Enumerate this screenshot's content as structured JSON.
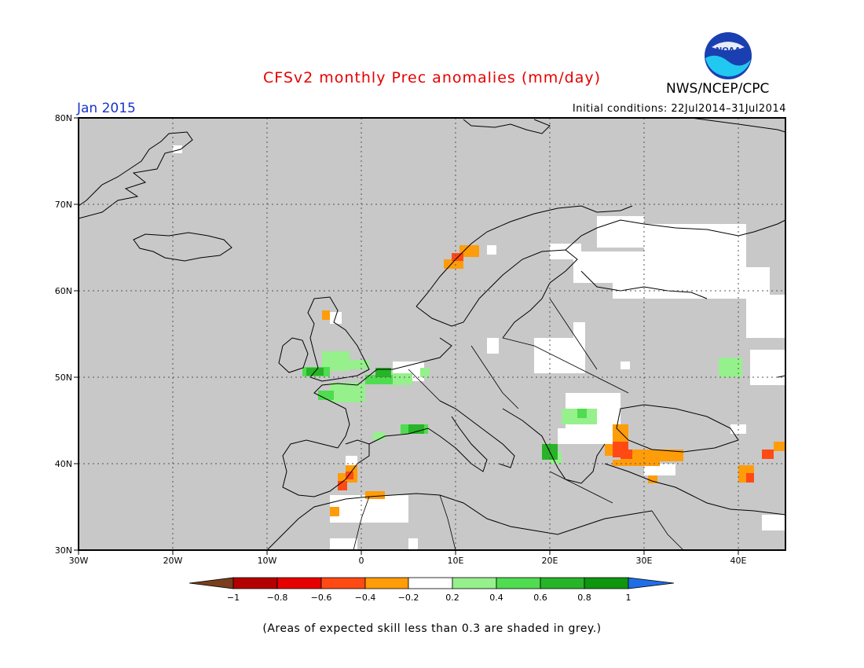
{
  "header": {
    "title": "CFSv2 monthly Prec anomalies (mm/day)",
    "subtitle": "Jan 2015",
    "initial_conditions": "Initial conditions: 22Jul2014–31Jul2014",
    "org": "NWS/NCEP/CPC",
    "logo_text": "NOAA"
  },
  "map": {
    "lat_labels": [
      "80N",
      "70N",
      "60N",
      "50N",
      "40N",
      "30N"
    ],
    "lon_labels": [
      "30W",
      "20W",
      "10W",
      "0",
      "10E",
      "20E",
      "30E",
      "40E"
    ],
    "background_color": "#c8c8c8"
  },
  "colorbar": {
    "tick_labels": [
      "−1",
      "−0.8",
      "−0.6",
      "−0.4",
      "−0.2",
      "0.2",
      "0.4",
      "0.6",
      "0.8",
      "1"
    ],
    "colors": [
      "#7a3d1e",
      "#b40000",
      "#e60000",
      "#ff4a14",
      "#ff9c0a",
      "#ffffff",
      "#96f08c",
      "#50dc50",
      "#28b428",
      "#0f960f",
      "#1e6ee6"
    ]
  },
  "footnote": "(Areas of expected skill less than 0.3 are shaded in grey.)"
}
